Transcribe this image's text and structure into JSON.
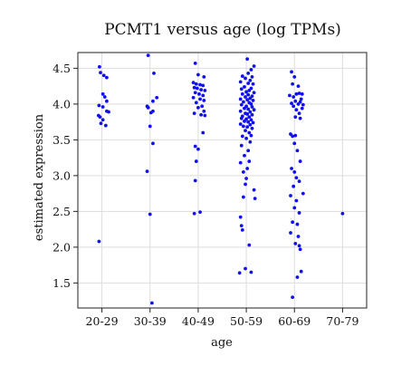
{
  "chart_data": {
    "type": "scatter",
    "title": "PCMT1 versus age (log TPMs)",
    "xlabel": "age",
    "ylabel": "estimated expression",
    "categories": [
      "20-29",
      "30-39",
      "40-49",
      "50-59",
      "60-69",
      "70-79"
    ],
    "yticks": [
      "1.5",
      "2.0",
      "2.5",
      "3.0",
      "3.5",
      "4.0",
      "4.5"
    ],
    "ylim": [
      1.15,
      4.72
    ],
    "grid": true,
    "color": "#1010ee",
    "series": [
      {
        "category": "20-29",
        "points": [
          [
            -0.05,
            4.52
          ],
          [
            -0.03,
            4.44
          ],
          [
            0.04,
            4.4
          ],
          [
            0.1,
            4.37
          ],
          [
            0.02,
            4.14
          ],
          [
            0.06,
            4.1
          ],
          [
            0.1,
            4.04
          ],
          [
            -0.06,
            3.98
          ],
          [
            0.02,
            3.96
          ],
          [
            0.1,
            3.9
          ],
          [
            0.14,
            3.89
          ],
          [
            -0.07,
            3.84
          ],
          [
            -0.04,
            3.82
          ],
          [
            0.02,
            3.78
          ],
          [
            -0.02,
            3.73
          ],
          [
            0.08,
            3.7
          ],
          [
            -0.06,
            2.08
          ]
        ]
      },
      {
        "category": "30-39",
        "points": [
          [
            -0.04,
            4.68
          ],
          [
            0.08,
            4.43
          ],
          [
            0.14,
            4.09
          ],
          [
            0.06,
            4.04
          ],
          [
            -0.06,
            3.97
          ],
          [
            -0.04,
            3.95
          ],
          [
            0.06,
            3.9
          ],
          [
            0.02,
            3.88
          ],
          [
            0.0,
            3.69
          ],
          [
            0.06,
            3.45
          ],
          [
            -0.06,
            3.06
          ],
          [
            0.0,
            2.46
          ],
          [
            0.04,
            1.22
          ]
        ]
      },
      {
        "category": "40-49",
        "points": [
          [
            -0.06,
            4.57
          ],
          [
            0.0,
            4.41
          ],
          [
            0.12,
            4.38
          ],
          [
            -0.1,
            4.3
          ],
          [
            -0.04,
            4.28
          ],
          [
            0.04,
            4.27
          ],
          [
            0.1,
            4.26
          ],
          [
            -0.08,
            4.23
          ],
          [
            -0.02,
            4.22
          ],
          [
            0.06,
            4.2
          ],
          [
            0.14,
            4.19
          ],
          [
            -0.06,
            4.16
          ],
          [
            0.02,
            4.14
          ],
          [
            0.1,
            4.12
          ],
          [
            -0.1,
            4.09
          ],
          [
            0.04,
            4.07
          ],
          [
            0.12,
            4.05
          ],
          [
            -0.04,
            4.02
          ],
          [
            0.08,
            3.97
          ],
          [
            0.0,
            3.95
          ],
          [
            0.12,
            3.9
          ],
          [
            -0.08,
            3.87
          ],
          [
            0.06,
            3.85
          ],
          [
            0.14,
            3.84
          ],
          [
            0.1,
            3.6
          ],
          [
            -0.06,
            3.41
          ],
          [
            0.0,
            3.37
          ],
          [
            -0.04,
            3.2
          ],
          [
            -0.06,
            2.93
          ],
          [
            -0.08,
            2.47
          ],
          [
            0.04,
            2.49
          ]
        ]
      },
      {
        "category": "50-59",
        "points": [
          [
            0.02,
            4.63
          ],
          [
            0.16,
            4.53
          ],
          [
            0.1,
            4.48
          ],
          [
            0.04,
            4.43
          ],
          [
            -0.08,
            4.39
          ],
          [
            0.12,
            4.38
          ],
          [
            -0.02,
            4.36
          ],
          [
            0.08,
            4.33
          ],
          [
            -0.12,
            4.31
          ],
          [
            0.04,
            4.29
          ],
          [
            0.14,
            4.28
          ],
          [
            -0.04,
            4.24
          ],
          [
            0.1,
            4.22
          ],
          [
            -0.1,
            4.21
          ],
          [
            0.06,
            4.19
          ],
          [
            0.0,
            4.17
          ],
          [
            0.16,
            4.16
          ],
          [
            -0.08,
            4.14
          ],
          [
            0.04,
            4.13
          ],
          [
            0.12,
            4.11
          ],
          [
            -0.02,
            4.1
          ],
          [
            0.08,
            4.08
          ],
          [
            -0.12,
            4.07
          ],
          [
            0.02,
            4.06
          ],
          [
            0.14,
            4.05
          ],
          [
            -0.06,
            4.03
          ],
          [
            0.06,
            4.02
          ],
          [
            0.1,
            4.0
          ],
          [
            -0.1,
            3.99
          ],
          [
            0.0,
            3.97
          ],
          [
            0.12,
            3.96
          ],
          [
            -0.04,
            3.94
          ],
          [
            0.04,
            3.93
          ],
          [
            0.16,
            3.92
          ],
          [
            -0.12,
            3.9
          ],
          [
            0.08,
            3.89
          ],
          [
            -0.02,
            3.87
          ],
          [
            0.02,
            3.86
          ],
          [
            0.12,
            3.85
          ],
          [
            -0.08,
            3.83
          ],
          [
            0.06,
            3.82
          ],
          [
            -0.1,
            3.8
          ],
          [
            0.0,
            3.79
          ],
          [
            0.1,
            3.78
          ],
          [
            -0.04,
            3.76
          ],
          [
            0.04,
            3.75
          ],
          [
            0.14,
            3.74
          ],
          [
            -0.12,
            3.72
          ],
          [
            0.08,
            3.71
          ],
          [
            -0.06,
            3.69
          ],
          [
            0.02,
            3.68
          ],
          [
            0.12,
            3.66
          ],
          [
            -0.02,
            3.63
          ],
          [
            0.06,
            3.6
          ],
          [
            0.1,
            3.56
          ],
          [
            -0.08,
            3.55
          ],
          [
            0.0,
            3.52
          ],
          [
            0.08,
            3.47
          ],
          [
            -0.1,
            3.42
          ],
          [
            0.04,
            3.35
          ],
          [
            -0.04,
            3.28
          ],
          [
            0.06,
            3.2
          ],
          [
            -0.12,
            3.18
          ],
          [
            0.02,
            3.1
          ],
          [
            -0.06,
            3.05
          ],
          [
            0.0,
            2.96
          ],
          [
            -0.02,
            2.88
          ],
          [
            0.16,
            2.8
          ],
          [
            -0.06,
            2.7
          ],
          [
            0.18,
            2.68
          ],
          [
            -0.12,
            2.42
          ],
          [
            -0.1,
            2.3
          ],
          [
            -0.08,
            2.24
          ],
          [
            0.06,
            2.03
          ],
          [
            -0.02,
            1.7
          ],
          [
            -0.14,
            1.64
          ],
          [
            0.1,
            1.65
          ]
        ]
      },
      {
        "category": "60-69",
        "points": [
          [
            -0.06,
            4.45
          ],
          [
            0.0,
            4.38
          ],
          [
            -0.04,
            4.28
          ],
          [
            0.08,
            4.25
          ],
          [
            0.1,
            4.15
          ],
          [
            0.04,
            4.14
          ],
          [
            0.16,
            4.14
          ],
          [
            -0.1,
            4.12
          ],
          [
            -0.02,
            4.1
          ],
          [
            0.14,
            4.07
          ],
          [
            0.02,
            4.04
          ],
          [
            0.12,
            4.03
          ],
          [
            -0.06,
            4.01
          ],
          [
            0.08,
            4.0
          ],
          [
            0.18,
            3.99
          ],
          [
            -0.02,
            3.97
          ],
          [
            0.16,
            3.94
          ],
          [
            0.04,
            3.92
          ],
          [
            0.1,
            3.87
          ],
          [
            0.02,
            3.82
          ],
          [
            0.12,
            3.8
          ],
          [
            -0.08,
            3.58
          ],
          [
            -0.04,
            3.55
          ],
          [
            0.02,
            3.56
          ],
          [
            0.0,
            3.45
          ],
          [
            0.06,
            3.35
          ],
          [
            0.12,
            3.2
          ],
          [
            -0.06,
            3.1
          ],
          [
            0.0,
            3.05
          ],
          [
            0.04,
            2.97
          ],
          [
            0.1,
            2.92
          ],
          [
            -0.02,
            2.85
          ],
          [
            0.18,
            2.75
          ],
          [
            -0.08,
            2.72
          ],
          [
            0.04,
            2.65
          ],
          [
            0.0,
            2.55
          ],
          [
            0.1,
            2.48
          ],
          [
            -0.04,
            2.35
          ],
          [
            0.06,
            2.32
          ],
          [
            -0.08,
            2.2
          ],
          [
            0.08,
            2.15
          ],
          [
            0.02,
            2.05
          ],
          [
            0.1,
            2.02
          ],
          [
            0.12,
            1.97
          ],
          [
            0.06,
            1.58
          ],
          [
            0.14,
            1.66
          ],
          [
            -0.04,
            1.3
          ]
        ]
      },
      {
        "category": "70-79",
        "points": [
          [
            0.0,
            2.47
          ]
        ]
      }
    ]
  }
}
